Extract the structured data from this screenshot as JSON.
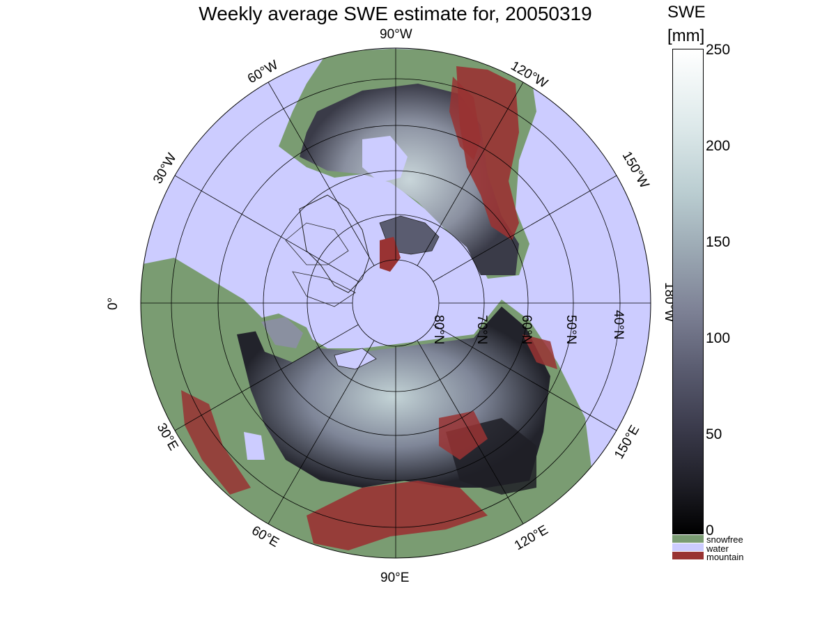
{
  "title": "Weekly average SWE estimate for, 20050319",
  "colorbar": {
    "title_line1": "SWE",
    "title_line2": "[mm]",
    "ticks": [
      {
        "value": 250,
        "label": "250"
      },
      {
        "value": 200,
        "label": "200"
      },
      {
        "value": 150,
        "label": "150"
      },
      {
        "value": 100,
        "label": "100"
      },
      {
        "value": 50,
        "label": "50"
      },
      {
        "value": 0,
        "label": "0"
      }
    ],
    "categories": [
      {
        "label": "snowfree",
        "color": "#7a9c72"
      },
      {
        "label": "water",
        "color": "#ccccff"
      },
      {
        "label": "mountain",
        "color": "#993333"
      }
    ]
  },
  "map": {
    "projection": "north polar stereographic",
    "ocean_color": "#ccccff",
    "snowfree_color": "#7a9c72",
    "mountain_color": "#993333",
    "longitude_labels": [
      "90°W",
      "120°W",
      "150°W",
      "180°W",
      "150°E",
      "120°E",
      "90°E",
      "60°E",
      "30°E",
      "0°",
      "30°W",
      "60°W"
    ],
    "latitude_labels": [
      "80°N",
      "70°N",
      "60°N",
      "50°N",
      "40°N"
    ]
  }
}
